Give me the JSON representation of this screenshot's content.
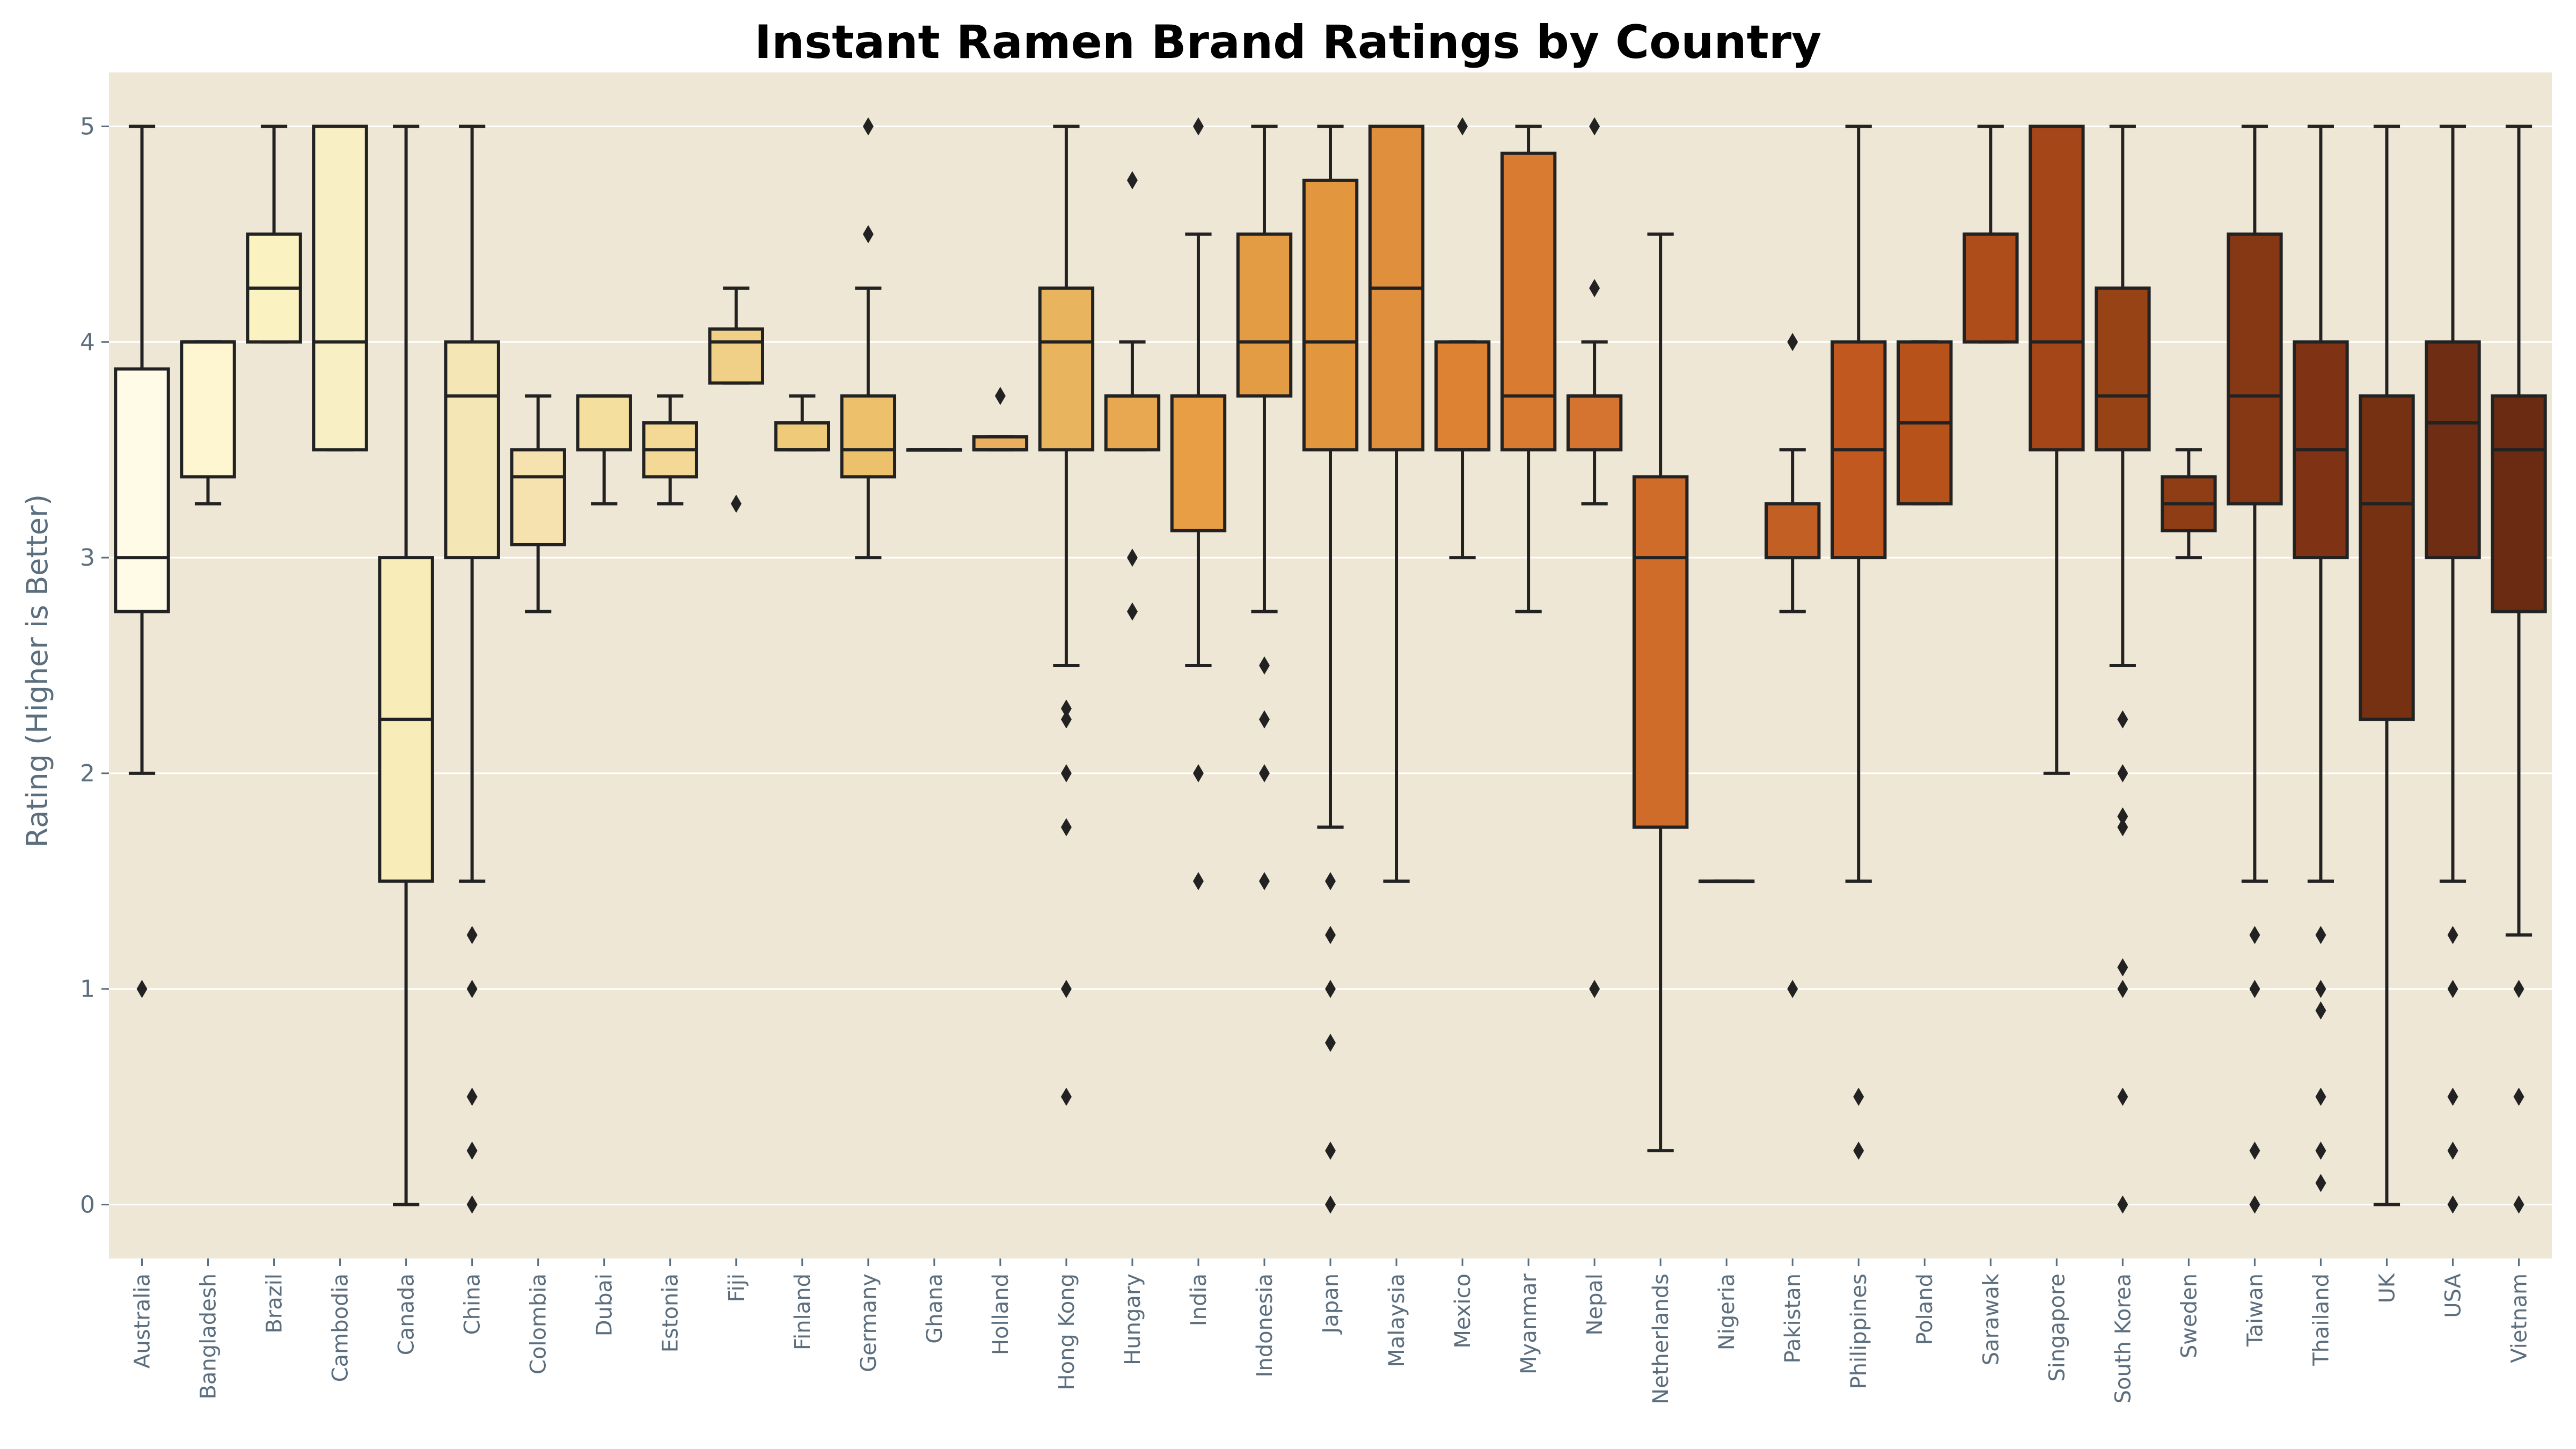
{
  "chart_data": {
    "type": "box",
    "title": "Instant Ramen Brand Ratings by Country",
    "xlabel": "",
    "ylabel": "Rating (Higher is Better)",
    "ylim": [
      -0.25,
      5.25
    ],
    "yticks": [
      0,
      1,
      2,
      3,
      4,
      5
    ],
    "grid": "horizontal",
    "plot_background": "#efe7d5",
    "categories": [
      "Australia",
      "Bangladesh",
      "Brazil",
      "Cambodia",
      "Canada",
      "China",
      "Colombia",
      "Dubai",
      "Estonia",
      "Fiji",
      "Finland",
      "Germany",
      "Ghana",
      "Holland",
      "Hong Kong",
      "Hungary",
      "India",
      "Indonesia",
      "Japan",
      "Malaysia",
      "Mexico",
      "Myanmar",
      "Nepal",
      "Netherlands",
      "Nigeria",
      "Pakistan",
      "Philippines",
      "Poland",
      "Sarawak",
      "Singapore",
      "South Korea",
      "Sweden",
      "Taiwan",
      "Thailand",
      "UK",
      "USA",
      "Vietnam"
    ],
    "boxes": [
      {
        "min": 2.0,
        "q1": 2.75,
        "median": 3.0,
        "q3": 3.875,
        "max": 5.0,
        "outliers": [
          1.0
        ]
      },
      {
        "min": 3.25,
        "q1": 3.375,
        "median": 4.0,
        "q3": 4.0,
        "max": 4.0,
        "outliers": []
      },
      {
        "min": 4.0,
        "q1": 4.0,
        "median": 4.25,
        "q3": 4.5,
        "max": 5.0,
        "outliers": []
      },
      {
        "min": 3.5,
        "q1": 3.5,
        "median": 4.0,
        "q3": 5.0,
        "max": 5.0,
        "outliers": []
      },
      {
        "min": 0.0,
        "q1": 1.5,
        "median": 2.25,
        "q3": 3.0,
        "max": 5.0,
        "outliers": []
      },
      {
        "min": 1.5,
        "q1": 3.0,
        "median": 3.75,
        "q3": 4.0,
        "max": 5.0,
        "outliers": [
          1.25,
          1.0,
          0.5,
          0.25,
          0.0
        ]
      },
      {
        "min": 2.75,
        "q1": 3.06,
        "median": 3.375,
        "q3": 3.5,
        "max": 3.75,
        "outliers": []
      },
      {
        "min": 3.25,
        "q1": 3.5,
        "median": 3.75,
        "q3": 3.75,
        "max": 3.75,
        "outliers": []
      },
      {
        "min": 3.25,
        "q1": 3.375,
        "median": 3.5,
        "q3": 3.625,
        "max": 3.75,
        "outliers": []
      },
      {
        "min": 3.81,
        "q1": 3.81,
        "median": 4.0,
        "q3": 4.06,
        "max": 4.25,
        "outliers": [
          3.25
        ]
      },
      {
        "min": 3.5,
        "q1": 3.5,
        "median": 3.5,
        "q3": 3.625,
        "max": 3.75,
        "outliers": []
      },
      {
        "min": 3.0,
        "q1": 3.375,
        "median": 3.5,
        "q3": 3.75,
        "max": 4.25,
        "outliers": [
          5.0,
          4.5
        ]
      },
      {
        "min": 3.5,
        "q1": 3.5,
        "median": 3.5,
        "q3": 3.5,
        "max": 3.5,
        "outliers": []
      },
      {
        "min": 3.5,
        "q1": 3.5,
        "median": 3.5,
        "q3": 3.56,
        "max": 3.56,
        "outliers": [
          3.75
        ]
      },
      {
        "min": 2.5,
        "q1": 3.5,
        "median": 4.0,
        "q3": 4.25,
        "max": 5.0,
        "outliers": [
          2.3,
          2.25,
          2.0,
          1.75,
          1.0,
          0.5
        ]
      },
      {
        "min": 3.5,
        "q1": 3.5,
        "median": 3.75,
        "q3": 3.75,
        "max": 4.0,
        "outliers": [
          4.75,
          3.0,
          2.75
        ]
      },
      {
        "min": 2.5,
        "q1": 3.125,
        "median": 3.75,
        "q3": 3.75,
        "max": 4.5,
        "outliers": [
          5.0,
          2.0,
          1.5
        ]
      },
      {
        "min": 2.75,
        "q1": 3.75,
        "median": 4.0,
        "q3": 4.5,
        "max": 5.0,
        "outliers": [
          2.5,
          2.25,
          2.0,
          1.5
        ]
      },
      {
        "min": 1.75,
        "q1": 3.5,
        "median": 4.0,
        "q3": 4.75,
        "max": 5.0,
        "outliers": [
          1.5,
          1.25,
          1.0,
          0.75,
          0.25,
          0.0
        ]
      },
      {
        "min": 1.5,
        "q1": 3.5,
        "median": 4.25,
        "q3": 5.0,
        "max": 5.0,
        "outliers": []
      },
      {
        "min": 3.0,
        "q1": 3.5,
        "median": 3.5,
        "q3": 4.0,
        "max": 4.0,
        "outliers": [
          5.0
        ]
      },
      {
        "min": 2.75,
        "q1": 3.5,
        "median": 3.75,
        "q3": 4.875,
        "max": 5.0,
        "outliers": []
      },
      {
        "min": 3.25,
        "q1": 3.5,
        "median": 3.75,
        "q3": 3.75,
        "max": 4.0,
        "outliers": [
          5.0,
          4.25,
          1.0
        ]
      },
      {
        "min": 0.25,
        "q1": 1.75,
        "median": 3.0,
        "q3": 3.375,
        "max": 4.5,
        "outliers": []
      },
      {
        "min": 1.5,
        "q1": 1.5,
        "median": 1.5,
        "q3": 1.5,
        "max": 1.5,
        "outliers": []
      },
      {
        "min": 2.75,
        "q1": 3.0,
        "median": 3.0,
        "q3": 3.25,
        "max": 3.5,
        "outliers": [
          4.0,
          1.0
        ]
      },
      {
        "min": 1.5,
        "q1": 3.0,
        "median": 3.5,
        "q3": 4.0,
        "max": 5.0,
        "outliers": [
          0.5,
          0.25
        ]
      },
      {
        "min": 3.25,
        "q1": 3.25,
        "median": 3.625,
        "q3": 4.0,
        "max": 4.0,
        "outliers": []
      },
      {
        "min": 4.0,
        "q1": 4.0,
        "median": 4.5,
        "q3": 4.5,
        "max": 5.0,
        "outliers": []
      },
      {
        "min": 2.0,
        "q1": 3.5,
        "median": 4.0,
        "q3": 5.0,
        "max": 5.0,
        "outliers": []
      },
      {
        "min": 2.5,
        "q1": 3.5,
        "median": 3.75,
        "q3": 4.25,
        "max": 5.0,
        "outliers": [
          2.25,
          2.0,
          1.8,
          1.75,
          1.1,
          1.0,
          0.5,
          0.0
        ]
      },
      {
        "min": 3.0,
        "q1": 3.125,
        "median": 3.25,
        "q3": 3.375,
        "max": 3.5,
        "outliers": []
      },
      {
        "min": 1.5,
        "q1": 3.25,
        "median": 3.75,
        "q3": 4.5,
        "max": 5.0,
        "outliers": [
          1.25,
          1.0,
          0.25,
          0.0
        ]
      },
      {
        "min": 1.5,
        "q1": 3.0,
        "median": 3.5,
        "q3": 4.0,
        "max": 5.0,
        "outliers": [
          1.25,
          1.0,
          0.9,
          0.5,
          0.25,
          0.1
        ]
      },
      {
        "min": 0.0,
        "q1": 2.25,
        "median": 3.25,
        "q3": 3.75,
        "max": 5.0,
        "outliers": []
      },
      {
        "min": 1.5,
        "q1": 3.0,
        "median": 3.625,
        "q3": 4.0,
        "max": 5.0,
        "outliers": [
          1.25,
          1.0,
          0.5,
          0.25,
          0.0
        ]
      },
      {
        "min": 1.25,
        "q1": 2.75,
        "median": 3.5,
        "q3": 3.75,
        "max": 5.0,
        "outliers": [
          1.0,
          0.5,
          0.0
        ]
      }
    ],
    "colors": [
      "#fffbe6",
      "#fdf6d0",
      "#fbf2c2",
      "#f9efc4",
      "#f8edb8",
      "#f5e6b5",
      "#f6e2ae",
      "#f5df9e",
      "#f3d896",
      "#f0cf86",
      "#efca78",
      "#edc06b",
      "#ebb965",
      "#eaaf5e",
      "#e9b45e",
      "#e8a852",
      "#e79e45",
      "#e39b44",
      "#e2963e",
      "#e08f3c",
      "#dd8133",
      "#d97b30",
      "#d47430",
      "#cf6c2a",
      "#c96427",
      "#c25f24",
      "#c1581f",
      "#b7521b",
      "#ae4c1a",
      "#a44617",
      "#984315",
      "#8e3d14",
      "#863815",
      "#7f3314",
      "#763012",
      "#6f2e13",
      "#6a2b12"
    ]
  }
}
